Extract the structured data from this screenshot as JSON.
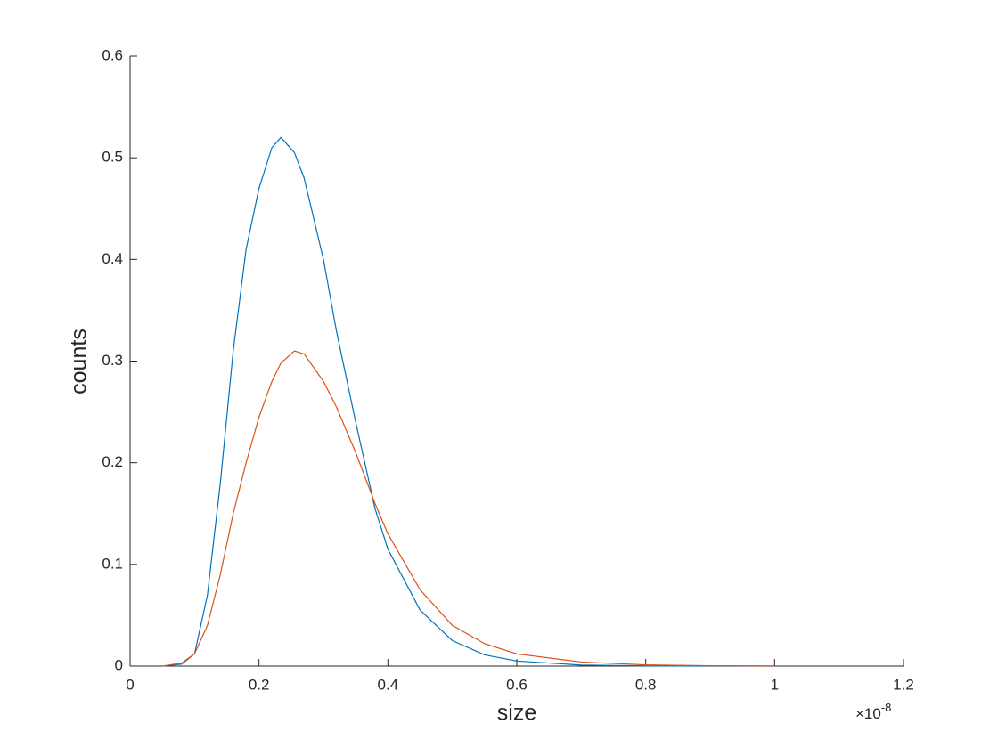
{
  "chart_data": {
    "type": "line",
    "xlabel": "size",
    "ylabel": "counts",
    "x_multiplier_base": "×10",
    "x_multiplier_exponent": "-8",
    "x": [
      0.05,
      0.08,
      0.1,
      0.12,
      0.14,
      0.16,
      0.18,
      0.2,
      0.22,
      0.234,
      0.255,
      0.27,
      0.3,
      0.32,
      0.35,
      0.38,
      0.4,
      0.45,
      0.5,
      0.55,
      0.6,
      0.7,
      0.8,
      0.9,
      1.0
    ],
    "series": [
      {
        "color": "#0072bd",
        "values": [
          0,
          0.002,
          0.012,
          0.07,
          0.18,
          0.31,
          0.41,
          0.47,
          0.51,
          0.52,
          0.505,
          0.48,
          0.4,
          0.33,
          0.24,
          0.155,
          0.115,
          0.055,
          0.025,
          0.011,
          0.005,
          0.001,
          0.0002,
          0,
          0
        ]
      },
      {
        "color": "#d95319",
        "values": [
          0,
          0.003,
          0.012,
          0.04,
          0.09,
          0.15,
          0.2,
          0.245,
          0.28,
          0.298,
          0.31,
          0.307,
          0.28,
          0.255,
          0.21,
          0.16,
          0.13,
          0.075,
          0.04,
          0.022,
          0.012,
          0.004,
          0.0012,
          0.0003,
          0.0001
        ]
      }
    ],
    "xlim": [
      0,
      1.2
    ],
    "xticks": [
      0,
      0.2,
      0.4,
      0.6,
      0.8,
      1,
      1.2
    ],
    "ylim": [
      0,
      0.6
    ],
    "yticks": [
      0,
      0.1,
      0.2,
      0.3,
      0.4,
      0.5,
      0.6
    ],
    "grid": false
  }
}
